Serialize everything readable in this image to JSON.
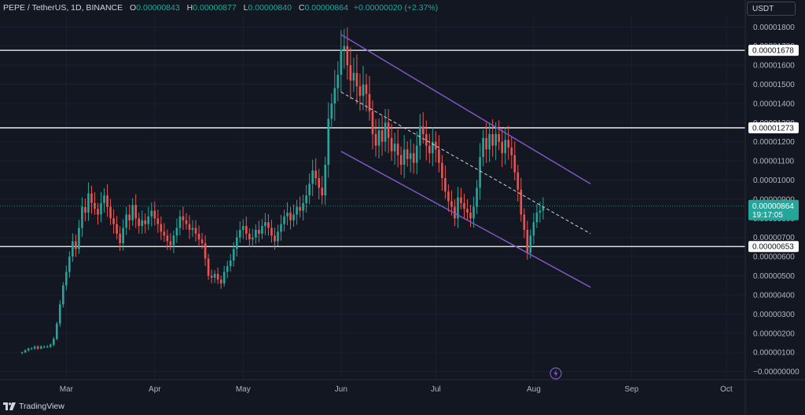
{
  "legend": {
    "symbol": "PEPE / TetherUS, 1D, BINANCE",
    "open_label": "O",
    "open": "0.00000843",
    "high_label": "H",
    "high": "0.00000877",
    "low_label": "L",
    "low": "0.00000840",
    "close_label": "C",
    "close": "0.00000864",
    "change": "+0.00000020 (+2.37%)"
  },
  "currency": "USDT",
  "footer": {
    "brand": "TradingView",
    "logo_icon": "tradingview-logo-icon"
  },
  "colors": {
    "up": "#26a69a",
    "down": "#ef5350",
    "channel": "#7e57c2",
    "level": "#ffffff",
    "background": "#131722"
  },
  "chart_data": {
    "type": "candlestick",
    "x_tick_labels": [
      "Mar",
      "Apr",
      "May",
      "Jun",
      "Jul",
      "Aug",
      "Sep",
      "Oct"
    ],
    "y_tick_labels": [
      "0.00001800",
      "0.00001700",
      "0.00001600",
      "0.00001500",
      "0.00001400",
      "0.00001300",
      "0.00001200",
      "0.00001100",
      "0.00001000",
      "0.00000900",
      "0.00000800",
      "0.00000700",
      "0.00000600",
      "0.00000500",
      "0.00000400",
      "0.00000300",
      "0.00000200",
      "0.00000100",
      "−0.00000000"
    ],
    "ylim": [
      -1e-07,
      1.83e-05
    ],
    "horizontal_levels": [
      {
        "label": "0.00001678",
        "value": 1.678e-05
      },
      {
        "label": "0.00001273",
        "value": 1.273e-05
      },
      {
        "label": "0.00000653",
        "value": 6.53e-06
      }
    ],
    "last_price": {
      "label": "0.00000864",
      "value": 8.64e-06,
      "countdown": "19:17:05"
    },
    "closes": [
      1e-06,
      1.1e-06,
      1.2e-06,
      1.2e-06,
      1.3e-06,
      1.2e-06,
      1.3e-06,
      1.3e-06,
      1.3e-06,
      1.4e-06,
      1.7e-06,
      2.5e-06,
      3.5e-06,
      4.5e-06,
      5.2e-06,
      6e-06,
      6.8e-06,
      6.4e-06,
      7.5e-06,
      8.6e-06,
      8.3e-06,
      9.3e-06,
      8.8e-06,
      8.5e-06,
      8.2e-06,
      8.8e-06,
      9.2e-06,
      8.6e-06,
      8e-06,
      7.7e-06,
      7.2e-06,
      6.7e-06,
      7.5e-06,
      8.2e-06,
      7.9e-06,
      8.7e-06,
      8e-06,
      7.6e-06,
      7.9e-06,
      7.7e-06,
      8.1e-06,
      8.4e-06,
      8e-06,
      7.7e-06,
      7.3e-06,
      7.1e-06,
      6.8e-06,
      6.6e-06,
      7.1e-06,
      7.5e-06,
      8.1e-06,
      7.9e-06,
      7.7e-06,
      7.4e-06,
      7.5e-06,
      7.2e-06,
      6.9e-06,
      6.7e-06,
      5.9e-06,
      5e-06,
      4.9e-06,
      5.1e-06,
      4.8e-06,
      4.6e-06,
      5.2e-06,
      5.5e-06,
      5.8e-06,
      6.4e-06,
      7e-06,
      7.4e-06,
      7.6e-06,
      7.2e-06,
      6.9e-06,
      7e-06,
      7.4e-06,
      7.2e-06,
      7.6e-06,
      7.8e-06,
      7.5e-06,
      7.1e-06,
      6.8e-06,
      7.3e-06,
      7.7e-06,
      8.1e-06,
      8.3e-06,
      7.9e-06,
      8.2e-06,
      8.6e-06,
      8.4e-06,
      8.8e-06,
      9.2e-06,
      9.8e-06,
      1.05e-05,
      1.01e-05,
      9.6e-06,
      9.2e-06,
      1.08e-05,
      1.32e-05,
      1.4e-05,
      1.48e-05,
      1.55e-05,
      1.68e-05,
      1.7e-05,
      1.6e-05,
      1.52e-05,
      1.56e-05,
      1.49e-05,
      1.44e-05,
      1.5e-05,
      1.45e-05,
      1.36e-05,
      1.24e-05,
      1.18e-05,
      1.26e-05,
      1.2e-05,
      1.3e-05,
      1.22e-05,
      1.15e-05,
      1.19e-05,
      1.13e-05,
      1.08e-05,
      1.16e-05,
      1.11e-05,
      1.14e-05,
      1.09e-05,
      1.18e-05,
      1.28e-05,
      1.24e-05,
      1.18e-05,
      1.14e-05,
      1.2e-05,
      1.16e-05,
      1.09e-05,
      1.01e-05,
      9.4e-06,
      8.9e-06,
      8.6e-06,
      8e-06,
      9.1e-06,
      8.8e-06,
      8.5e-06,
      8.3e-06,
      8e-06,
      8.6e-06,
      9.6e-06,
      1.12e-05,
      1.22e-05,
      1.16e-05,
      1.24e-05,
      1.18e-05,
      1.24e-05,
      1.2e-05,
      1.14e-05,
      1.21e-05,
      1.17e-05,
      1.13e-05,
      1.04e-05,
      9.5e-06,
      8.2e-06,
      7.4e-06,
      6.2e-06,
      7.1e-06,
      7.8e-06,
      8.3e-06,
      8.4e-06,
      8.6e-06
    ],
    "resistance_line": {
      "start": {
        "index": 101,
        "value": 1.76e-05
      },
      "end": {
        "index": 180,
        "value": 9.8e-06
      }
    },
    "support_line": {
      "start": {
        "index": 101,
        "value": 1.15e-05
      },
      "end": {
        "index": 180,
        "value": 4.4e-06
      }
    },
    "mid_line": {
      "start": {
        "index": 101,
        "value": 1.46e-05
      },
      "end": {
        "index": 180,
        "value": 7.2e-06
      }
    },
    "x_index_range": [
      -6,
      228
    ],
    "x_tick_index": [
      14,
      42,
      70,
      101,
      131,
      162,
      193,
      223
    ]
  }
}
